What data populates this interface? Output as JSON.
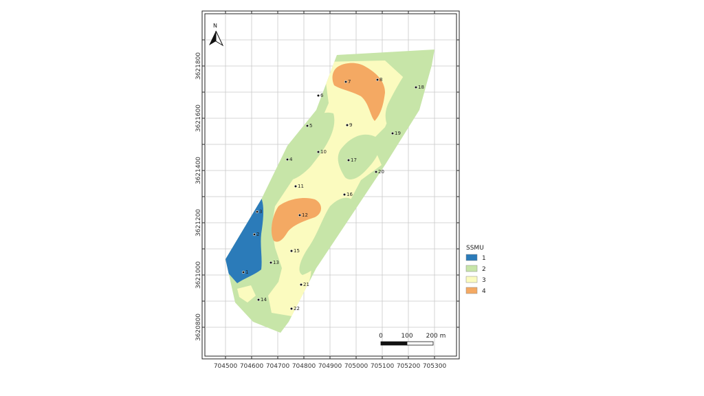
{
  "legend": {
    "title": "SSMU",
    "items": [
      {
        "label": "1",
        "color": "#2b7bb9"
      },
      {
        "label": "2",
        "color": "#c7e5a8"
      },
      {
        "label": "3",
        "color": "#fbfbbf"
      },
      {
        "label": "4",
        "color": "#f4a963"
      }
    ]
  },
  "x_ticks": [
    "704500",
    "704600",
    "704700",
    "704800",
    "704900",
    "705000",
    "705100",
    "705200",
    "705300"
  ],
  "y_ticks": [
    "3620800",
    "3621000",
    "3621200",
    "3621400",
    "3621600",
    "3621800"
  ],
  "north_label": "N",
  "scalebar": {
    "label_0": "0",
    "label_100": "100",
    "label_200": "200 m"
  },
  "sample_points": [
    "1",
    "2",
    "3",
    "4",
    "5",
    "6",
    "7",
    "8",
    "9",
    "10",
    "11",
    "12",
    "13",
    "14",
    "15",
    "16",
    "17",
    "18",
    "19",
    "20",
    "21",
    "22"
  ]
}
